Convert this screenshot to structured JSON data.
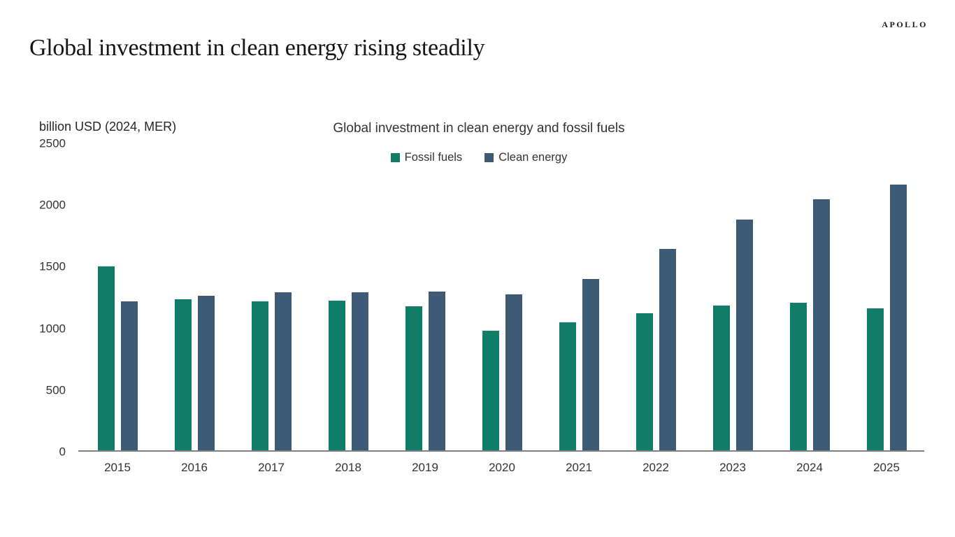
{
  "brand": {
    "logo": "APOLLO"
  },
  "header": {
    "title": "Global investment in clean energy rising steadily"
  },
  "chart_data": {
    "type": "bar",
    "title": "Global investment in clean energy and fossil fuels",
    "unit_label": "billion USD (2024, MER)",
    "categories": [
      "2015",
      "2016",
      "2017",
      "2018",
      "2019",
      "2020",
      "2021",
      "2022",
      "2023",
      "2024",
      "2025"
    ],
    "series": [
      {
        "name": "Fossil fuels",
        "color": "#107d68",
        "values": [
          1490,
          1225,
          1210,
          1215,
          1165,
          970,
          1040,
          1110,
          1175,
          1195,
          1150
        ]
      },
      {
        "name": "Clean energy",
        "color": "#3d5a77",
        "values": [
          1210,
          1255,
          1280,
          1280,
          1285,
          1265,
          1390,
          1630,
          1870,
          2035,
          2155
        ]
      }
    ],
    "ylim": [
      0,
      2500
    ],
    "yticks": [
      0,
      500,
      1000,
      1500,
      2000,
      2500
    ],
    "legend_position": "top",
    "grid": false,
    "axis_line_color": "#7f7f7f",
    "text_color": "#333333"
  }
}
